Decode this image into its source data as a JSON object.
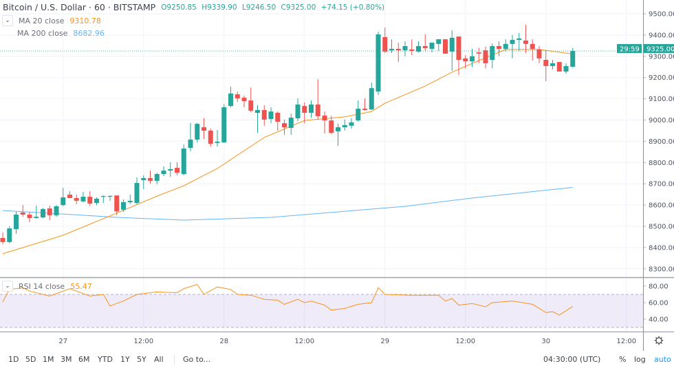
{
  "header": {
    "title": "Bitcoin / U.S. Dollar · 60 · BITSTAMP",
    "open": "O9250.85",
    "high": "H9339.90",
    "low": "L9246.50",
    "close": "C9325.00",
    "change": "+74.15 (+0.80%)"
  },
  "indicators": {
    "ma20": {
      "label": "MA 20 close",
      "value": "9310.78",
      "color": "#f7931a"
    },
    "ma200": {
      "label": "MA 200 close",
      "value": "8682.96",
      "color": "#64b5f6"
    },
    "rsi": {
      "label": "RSI 14 close",
      "value": "55.47",
      "color": "#f7931a"
    }
  },
  "price_label": {
    "value": "9325.00",
    "countdown": "29:59",
    "color": "#26a69a"
  },
  "toolbar": {
    "timeframes": [
      "1D",
      "5D",
      "1M",
      "3M",
      "6M",
      "YTD",
      "1Y",
      "5Y",
      "All"
    ],
    "goto": "Go to...",
    "clock": "04:30:00 (UTC)",
    "percent": "%",
    "log": "log",
    "auto": "auto",
    "settings_icon": "gear-icon"
  },
  "chart_data": {
    "type": "candlestick",
    "symbol": "Bitcoin / U.S. Dollar",
    "interval": "60",
    "exchange": "BITSTAMP",
    "colors": {
      "up": "#26a69a",
      "down": "#ef5350"
    },
    "grid": true,
    "ylim": [
      8250,
      9560
    ],
    "y_ticks": [
      "9500.00",
      "9400.00",
      "9300.00",
      "9200.00",
      "9100.00",
      "9000.00",
      "8900.00",
      "8800.00",
      "8700.00",
      "8600.00",
      "8500.00",
      "8400.00",
      "8300.00"
    ],
    "x_ticks": [
      {
        "t": "27 00:00",
        "label": "27"
      },
      {
        "t": "27 12:00",
        "label": "12:00"
      },
      {
        "t": "28 00:00",
        "label": "28"
      },
      {
        "t": "28 12:00",
        "label": "12:00"
      },
      {
        "t": "29 00:00",
        "label": "29"
      },
      {
        "t": "29 12:00",
        "label": "12:00"
      },
      {
        "t": "30 00:00",
        "label": "30"
      },
      {
        "t": "30 12:00",
        "label": "12:00"
      }
    ],
    "candles_columns": [
      "time",
      "open",
      "high",
      "low",
      "close"
    ],
    "candles": [
      [
        "26 15:00",
        8445,
        8471,
        8416,
        8426
      ],
      [
        "26 16:00",
        8426,
        8500,
        8420,
        8490
      ],
      [
        "26 17:00",
        8487,
        8568,
        8465,
        8555
      ],
      [
        "26 18:00",
        8565,
        8600,
        8545,
        8555
      ],
      [
        "26 19:00",
        8555,
        8568,
        8520,
        8539
      ],
      [
        "26 20:00",
        8539,
        8597,
        8536,
        8545
      ],
      [
        "26 21:00",
        8542,
        8587,
        8539,
        8581
      ],
      [
        "26 22:00",
        8584,
        8597,
        8529,
        8552
      ],
      [
        "26 23:00",
        8552,
        8600,
        8545,
        8594
      ],
      [
        "27 00:00",
        8600,
        8681,
        8594,
        8636
      ],
      [
        "27 01:00",
        8649,
        8665,
        8633,
        8633
      ],
      [
        "27 02:00",
        8633,
        8649,
        8604,
        8620
      ],
      [
        "27 03:00",
        8617,
        8662,
        8613,
        8639
      ],
      [
        "27 04:00",
        8639,
        8665,
        8597,
        8607
      ],
      [
        "27 05:00",
        8610,
        8636,
        8600,
        8630
      ],
      [
        "27 06:00",
        8639,
        8646,
        8610,
        8642
      ],
      [
        "27 07:00",
        8642,
        8645,
        8620,
        8643
      ],
      [
        "27 08:00",
        8645,
        8646,
        8552,
        8570
      ],
      [
        "27 09:00",
        8578,
        8626,
        8568,
        8614
      ],
      [
        "27 10:00",
        8613,
        8649,
        8604,
        8620
      ],
      [
        "27 11:00",
        8610,
        8730,
        8604,
        8704
      ],
      [
        "27 12:00",
        8717,
        8740,
        8675,
        8727
      ],
      [
        "27 13:00",
        8727,
        8762,
        8701,
        8714
      ],
      [
        "27 14:00",
        8714,
        8752,
        8698,
        8746
      ],
      [
        "27 15:00",
        8746,
        8782,
        8736,
        8762
      ],
      [
        "27 16:00",
        8762,
        8801,
        8733,
        8769
      ],
      [
        "27 17:00",
        8775,
        8801,
        8740,
        8752
      ],
      [
        "27 18:00",
        8746,
        8885,
        8740,
        8866
      ],
      [
        "27 19:00",
        8869,
        8986,
        8853,
        8908
      ],
      [
        "27 20:00",
        8908,
        8986,
        8895,
        8982
      ],
      [
        "27 21:00",
        8966,
        9008,
        8911,
        8950
      ],
      [
        "27 22:00",
        8950,
        8960,
        8875,
        8888
      ],
      [
        "27 23:00",
        8892,
        8953,
        8875,
        8898
      ],
      [
        "28 00:00",
        8895,
        9075,
        8892,
        9060
      ],
      [
        "28 01:00",
        9066,
        9157,
        9060,
        9125
      ],
      [
        "28 02:00",
        9121,
        9134,
        9085,
        9102
      ],
      [
        "28 03:00",
        9105,
        9115,
        9060,
        9089
      ],
      [
        "28 04:00",
        9092,
        9153,
        9037,
        9044
      ],
      [
        "28 05:00",
        9034,
        9070,
        8940,
        9047
      ],
      [
        "28 06:00",
        9047,
        9070,
        8973,
        9002
      ],
      [
        "28 07:00",
        9005,
        9060,
        8985,
        9040
      ],
      [
        "28 08:00",
        9034,
        9040,
        8950,
        8992
      ],
      [
        "28 09:00",
        8985,
        9002,
        8930,
        8966
      ],
      [
        "28 10:00",
        8963,
        9030,
        8930,
        9011
      ],
      [
        "28 11:00",
        9008,
        9102,
        8995,
        9073
      ],
      [
        "28 12:00",
        9066,
        9083,
        8985,
        9034
      ],
      [
        "28 13:00",
        9034,
        9092,
        9011,
        9073
      ],
      [
        "28 14:00",
        9073,
        9192,
        9002,
        9018
      ],
      [
        "28 15:00",
        9021,
        9040,
        8937,
        8998
      ],
      [
        "28 16:00",
        8998,
        9021,
        8933,
        8940
      ],
      [
        "28 17:00",
        8947,
        8982,
        8879,
        8966
      ],
      [
        "28 18:00",
        8966,
        9002,
        8950,
        8976
      ],
      [
        "28 19:00",
        8973,
        9008,
        8960,
        8989
      ],
      [
        "28 20:00",
        8998,
        9092,
        8992,
        9053
      ],
      [
        "28 21:00",
        9053,
        9102,
        9044,
        9047
      ],
      [
        "28 22:00",
        9050,
        9176,
        9047,
        9150
      ],
      [
        "28 23:00",
        9134,
        9416,
        9118,
        9403
      ],
      [
        "29 00:00",
        9390,
        9435,
        9315,
        9322
      ],
      [
        "29 01:00",
        9328,
        9380,
        9315,
        9335
      ],
      [
        "29 02:00",
        9335,
        9364,
        9273,
        9328
      ],
      [
        "29 03:00",
        9328,
        9370,
        9300,
        9348
      ],
      [
        "29 04:00",
        9332,
        9380,
        9305,
        9325
      ],
      [
        "29 05:00",
        9322,
        9370,
        9318,
        9348
      ],
      [
        "29 06:00",
        9348,
        9403,
        9325,
        9338
      ],
      [
        "29 07:00",
        9335,
        9364,
        9318,
        9364
      ],
      [
        "29 08:00",
        9358,
        9380,
        9325,
        9380
      ],
      [
        "29 09:00",
        9380,
        9380,
        9312,
        9312
      ],
      [
        "29 10:00",
        9322,
        9422,
        9231,
        9387
      ],
      [
        "29 11:00",
        9393,
        9393,
        9212,
        9283
      ],
      [
        "29 12:00",
        9290,
        9305,
        9241,
        9276
      ],
      [
        "29 13:00",
        9276,
        9335,
        9250,
        9300
      ],
      [
        "29 14:00",
        9318,
        9340,
        9268,
        9312
      ],
      [
        "29 15:00",
        9328,
        9345,
        9243,
        9267
      ],
      [
        "29 16:00",
        9283,
        9360,
        9243,
        9348
      ],
      [
        "29 17:00",
        9348,
        9370,
        9300,
        9335
      ],
      [
        "29 18:00",
        9335,
        9380,
        9322,
        9358
      ],
      [
        "29 19:00",
        9358,
        9400,
        9290,
        9377
      ],
      [
        "29 20:00",
        9377,
        9410,
        9325,
        9384
      ],
      [
        "29 21:00",
        9374,
        9448,
        9315,
        9358
      ],
      [
        "29 22:00",
        9358,
        9380,
        9280,
        9335
      ],
      [
        "29 23:00",
        9332,
        9348,
        9267,
        9290
      ],
      [
        "30 00:00",
        9283,
        9328,
        9183,
        9254
      ],
      [
        "30 01:00",
        9254,
        9283,
        9238,
        9267
      ],
      [
        "30 02:00",
        9273,
        9273,
        9228,
        9228
      ],
      [
        "30 03:00",
        9228,
        9267,
        9218,
        9254
      ],
      [
        "30 04:00",
        9250.85,
        9339.9,
        9246.5,
        9325.0
      ]
    ],
    "ma20": [
      [
        "26 15:00",
        8371
      ],
      [
        "27 00:00",
        8458
      ],
      [
        "27 08:00",
        8562
      ],
      [
        "27 14:00",
        8642
      ],
      [
        "27 18:00",
        8691
      ],
      [
        "27 23:00",
        8772
      ],
      [
        "28 06:00",
        8918
      ],
      [
        "28 12:00",
        8998
      ],
      [
        "28 18:00",
        9015
      ],
      [
        "28 22:00",
        9040
      ],
      [
        "29 00:00",
        9079
      ],
      [
        "29 06:00",
        9160
      ],
      [
        "29 10:00",
        9225
      ],
      [
        "29 14:00",
        9280
      ],
      [
        "29 18:00",
        9332
      ],
      [
        "29 23:00",
        9332
      ],
      [
        "30 04:00",
        9310.78
      ]
    ],
    "ma200": [
      [
        "26 15:00",
        8574
      ],
      [
        "27 00:00",
        8558
      ],
      [
        "27 08:00",
        8542
      ],
      [
        "27 18:00",
        8529
      ],
      [
        "28 07:00",
        8542
      ],
      [
        "28 17:00",
        8568
      ],
      [
        "29 03:00",
        8594
      ],
      [
        "29 13:00",
        8633
      ],
      [
        "30 04:00",
        8682.96
      ]
    ],
    "rsi": {
      "y_ticks": [
        "80.00",
        "60.00",
        "40.00"
      ],
      "bands": [
        70,
        30
      ],
      "ylim": [
        25,
        85
      ],
      "band_color": "#7e57c2",
      "values": [
        [
          "26 15:00",
          61
        ],
        [
          "26 16:00",
          76
        ],
        [
          "26 18:00",
          78
        ],
        [
          "26 19:00",
          74
        ],
        [
          "26 22:00",
          68
        ],
        [
          "27 01:00",
          77
        ],
        [
          "27 04:00",
          68
        ],
        [
          "27 06:00",
          70
        ],
        [
          "27 07:00",
          56
        ],
        [
          "27 09:00",
          62
        ],
        [
          "27 11:00",
          70
        ],
        [
          "27 14:00",
          73
        ],
        [
          "27 17:00",
          72
        ],
        [
          "27 18:00",
          77
        ],
        [
          "27 20:00",
          82
        ],
        [
          "27 21:00",
          70
        ],
        [
          "27 23:00",
          79
        ],
        [
          "28 01:00",
          76
        ],
        [
          "28 02:00",
          70
        ],
        [
          "28 04:00",
          69
        ],
        [
          "28 06:00",
          64
        ],
        [
          "28 08:00",
          63
        ],
        [
          "28 09:00",
          58
        ],
        [
          "28 11:00",
          64
        ],
        [
          "28 12:00",
          60
        ],
        [
          "28 13:00",
          62
        ],
        [
          "28 15:00",
          57
        ],
        [
          "28 16:00",
          51
        ],
        [
          "28 18:00",
          53
        ],
        [
          "28 20:00",
          58
        ],
        [
          "28 22:00",
          60
        ],
        [
          "28 23:00",
          78
        ],
        [
          "29 00:00",
          70
        ],
        [
          "29 04:00",
          69
        ],
        [
          "29 08:00",
          69
        ],
        [
          "29 09:00",
          62
        ],
        [
          "29 10:00",
          65
        ],
        [
          "29 11:00",
          57
        ],
        [
          "29 13:00",
          59
        ],
        [
          "29 15:00",
          55
        ],
        [
          "29 16:00",
          60
        ],
        [
          "29 19:00",
          62
        ],
        [
          "29 22:00",
          58
        ],
        [
          "30 00:00",
          48
        ],
        [
          "30 01:00",
          49
        ],
        [
          "30 02:00",
          45
        ],
        [
          "30 04:00",
          55.47
        ]
      ]
    }
  }
}
